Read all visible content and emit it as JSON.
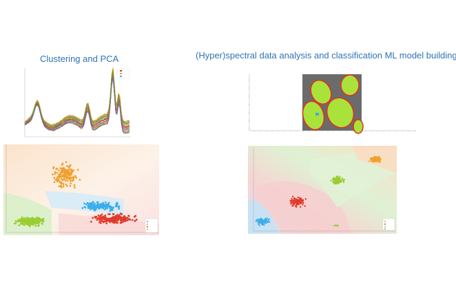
{
  "titles": {
    "left": "Clustering and PCA",
    "right": "(Hyper)spectral data analysis and classification ML model building"
  },
  "colors": {
    "title": "#2e74b5",
    "orange": "#f0a030",
    "blue": "#3daee9",
    "green": "#9acd32",
    "red": "#e03a2a",
    "gray": "#666666",
    "lime": "#a8e23a"
  },
  "figures": {
    "spectra": {
      "description_icon": "spectra-line-plot"
    },
    "cluster": {
      "description_icon": "cluster-scatter-plot"
    },
    "hyper": {
      "description_icon": "hyperspectral-image"
    },
    "classif": {
      "description_icon": "classification-scatter-plot"
    }
  }
}
